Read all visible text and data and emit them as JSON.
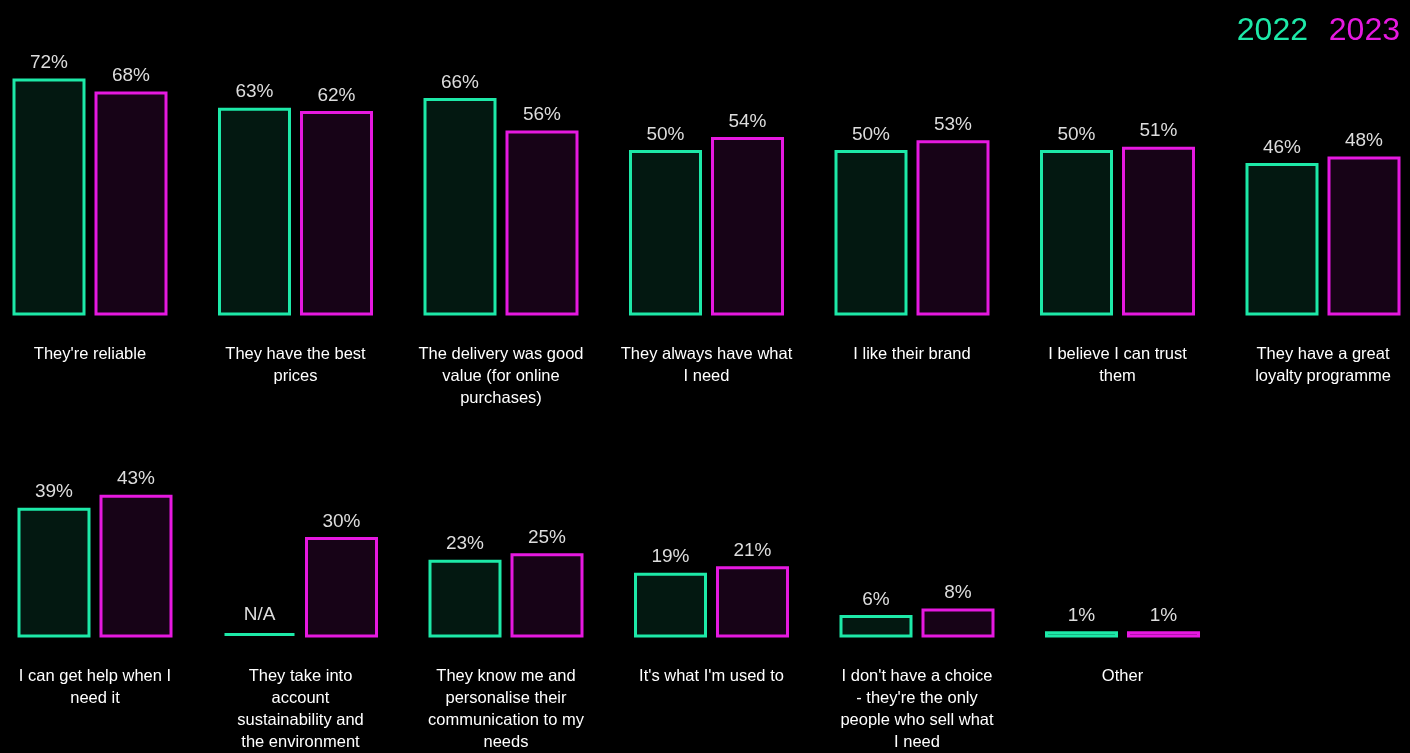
{
  "chart_data": [
    {
      "type": "bar",
      "categories": [
        "They're reliable",
        "They have the best prices",
        "The delivery was good value (for online purchases)",
        "They always have what I need",
        "I like their brand",
        "I believe I can trust them",
        "They have a great loyalty programme"
      ],
      "series": [
        {
          "name": "2022",
          "color": "#1de9a8",
          "values": [
            72,
            63,
            66,
            50,
            50,
            50,
            46
          ],
          "value_labels": [
            "72%",
            "63%",
            "66%",
            "50%",
            "50%",
            "50%",
            "46%"
          ]
        },
        {
          "name": "2023",
          "color": "#e619e0",
          "values": [
            68,
            62,
            56,
            54,
            53,
            51,
            48
          ],
          "value_labels": [
            "68%",
            "62%",
            "56%",
            "54%",
            "53%",
            "51%",
            "48%"
          ]
        }
      ]
    },
    {
      "type": "bar",
      "categories": [
        "I can get help when I need it",
        "They take into account sustainability and the environment",
        "They know me and personalise their communication to my needs",
        "It's what I'm used to",
        "I don't have a choice - they're the only people who sell what I need",
        "Other"
      ],
      "series": [
        {
          "color": "#1de9a8",
          "values": [
            39,
            null,
            23,
            19,
            6,
            1
          ],
          "value_labels": [
            "39%",
            "N/A",
            "23%",
            "19%",
            "6%",
            "1%"
          ]
        },
        {
          "color": "#e619e0",
          "values": [
            43,
            30,
            25,
            21,
            8,
            1
          ],
          "value_labels": [
            "43%",
            "30%",
            "25%",
            "21%",
            "8%",
            "1%"
          ]
        }
      ]
    }
  ]
}
